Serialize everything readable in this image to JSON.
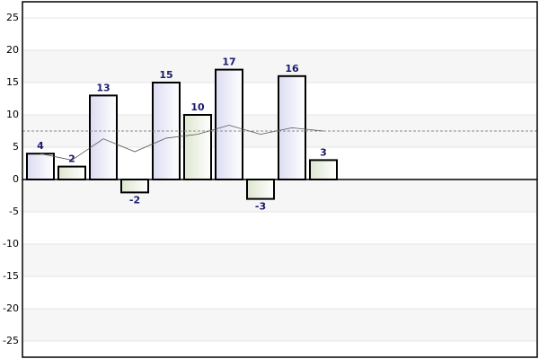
{
  "chart_data": {
    "type": "bar",
    "categories": [
      null,
      null,
      null,
      null,
      null,
      null,
      null,
      null,
      null,
      null
    ],
    "values": [
      4,
      2,
      13,
      -2,
      15,
      10,
      17,
      -3,
      16,
      3
    ],
    "colors": [
      "#dcdcf2",
      "#dde6cf"
    ],
    "line_values": [
      4,
      3,
      6.3,
      4.3,
      6.4,
      7,
      8.4,
      7,
      8,
      7.5
    ],
    "mean_line": 7.5,
    "ylim": [
      -27.5,
      27.5
    ],
    "yticks": [
      -25,
      -20,
      -15,
      -10,
      -5,
      0,
      5,
      10,
      15,
      20,
      25
    ],
    "grid": true
  }
}
